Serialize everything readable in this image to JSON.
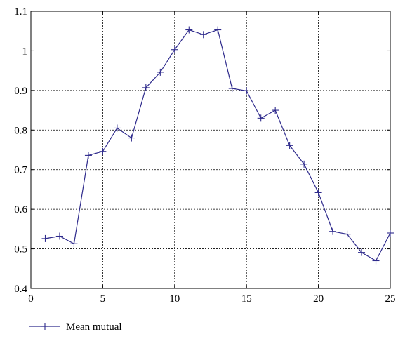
{
  "chart_data": {
    "type": "line",
    "title": "",
    "xlabel": "",
    "ylabel": "",
    "xlim": [
      0,
      25
    ],
    "ylim": [
      0.4,
      1.1
    ],
    "xticks": [
      0,
      5,
      10,
      15,
      20,
      25
    ],
    "yticks": [
      0.4,
      0.5,
      0.6,
      0.7,
      0.8,
      0.9,
      1,
      1.1
    ],
    "xtick_labels": [
      "0",
      "5",
      "10",
      "15",
      "20",
      "25"
    ],
    "ytick_labels": [
      "0.4",
      "0.5",
      "0.6",
      "0.7",
      "0.8",
      "0.9",
      "1",
      "1.1"
    ],
    "grid": true,
    "legend_position": "bottom-left",
    "series": [
      {
        "name": "Mean mutual",
        "color": "#2e2a8c",
        "marker": "plus",
        "x": [
          1,
          2,
          3,
          4,
          5,
          6,
          7,
          8,
          9,
          10,
          11,
          12,
          13,
          14,
          15,
          16,
          17,
          18,
          19,
          20,
          21,
          22,
          23,
          24,
          25
        ],
        "y": [
          0.526,
          0.532,
          0.513,
          0.736,
          0.746,
          0.805,
          0.78,
          0.907,
          0.946,
          1.003,
          1.053,
          1.041,
          1.053,
          0.905,
          0.899,
          0.83,
          0.85,
          0.761,
          0.714,
          0.642,
          0.544,
          0.537,
          0.491,
          0.47,
          0.54
        ]
      }
    ]
  }
}
